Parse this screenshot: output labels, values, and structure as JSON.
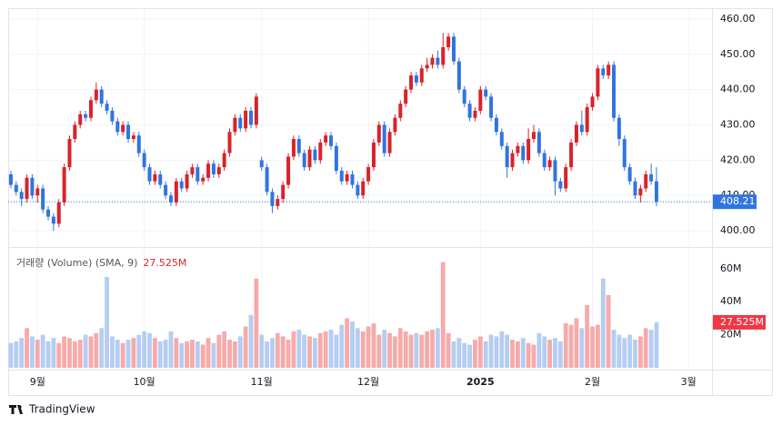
{
  "chart_data": {
    "type": "candlestick",
    "xlim": [
      -0.5,
      131.4
    ],
    "xticks": [
      {
        "value": 5,
        "label": "9월"
      },
      {
        "value": 25,
        "label": "10월"
      },
      {
        "value": 47,
        "label": "11월"
      },
      {
        "value": 67,
        "label": "12월"
      },
      {
        "value": 88,
        "label": "2025"
      },
      {
        "value": 109,
        "label": "2월"
      },
      {
        "value": 127,
        "label": "3월"
      }
    ],
    "ylim": [
      395.4,
      462.8
    ],
    "yticks": [
      {
        "value": 400,
        "label": "400.00"
      },
      {
        "value": 410,
        "label": "410.00"
      },
      {
        "value": 420,
        "label": "420.00"
      },
      {
        "value": 430,
        "label": "430.00"
      },
      {
        "value": 440,
        "label": "440.00"
      },
      {
        "value": 450,
        "label": "450.00"
      },
      {
        "value": 460,
        "label": "460.00"
      }
    ],
    "volume_ylim": [
      -1.1,
      73.1
    ],
    "volume_yticks": [
      {
        "value": 20,
        "label": "20M"
      },
      {
        "value": 40,
        "label": "40M"
      },
      {
        "value": 60,
        "label": "60M"
      }
    ],
    "volume_indicator": {
      "label": "거래량 (Volume) (SMA, 9)",
      "value_label": "27.525M"
    },
    "up_color": "#d8232a",
    "down_color": "#3174e0",
    "volume_up_color": "#f6aaa9",
    "volume_down_color": "#b4cdf3",
    "grid": true,
    "open": [
      416,
      413,
      411,
      409,
      415,
      410,
      412,
      406,
      404,
      402,
      408,
      418,
      426,
      430,
      433,
      432,
      437,
      440,
      436,
      434,
      431,
      428,
      430,
      426,
      427,
      422,
      418,
      414,
      416,
      413,
      410,
      408,
      414,
      412,
      416,
      418,
      414,
      415,
      419,
      416,
      418,
      422,
      428,
      432,
      429,
      434,
      430,
      420,
      418,
      411,
      407,
      409,
      413,
      421,
      426,
      422,
      418,
      423,
      420,
      425,
      427,
      424,
      417,
      414,
      416,
      413,
      410,
      414,
      418,
      425,
      430,
      422,
      428,
      432,
      436,
      440,
      444,
      442,
      446,
      447,
      449,
      447,
      452,
      455,
      448,
      440,
      436,
      432,
      434,
      440,
      438,
      432,
      428,
      424,
      418,
      422,
      424,
      420,
      426,
      428,
      422,
      418,
      420,
      414,
      412,
      418,
      425,
      430,
      428,
      435,
      438,
      446,
      444,
      447,
      432,
      426,
      418,
      414,
      410,
      412,
      416,
      414
    ],
    "high": [
      417,
      414,
      412,
      416,
      416,
      413,
      413,
      407,
      405,
      409,
      419,
      427,
      431,
      434,
      434,
      438,
      442,
      441,
      437,
      435,
      432,
      431,
      431,
      428,
      428,
      423,
      419,
      417,
      417,
      414,
      411,
      415,
      415,
      417,
      419,
      419,
      416,
      420,
      420,
      419,
      423,
      429,
      433,
      433,
      435,
      435,
      439,
      421,
      419,
      412,
      410,
      414,
      422,
      427,
      427,
      423,
      424,
      424,
      426,
      428,
      428,
      425,
      418,
      417,
      417,
      414,
      415,
      419,
      426,
      431,
      431,
      429,
      433,
      437,
      441,
      445,
      445,
      447,
      449,
      450,
      451,
      456,
      456,
      456,
      449,
      441,
      437,
      435,
      441,
      441,
      439,
      433,
      429,
      425,
      423,
      425,
      425,
      429,
      430,
      429,
      423,
      421,
      421,
      415,
      419,
      426,
      431,
      434,
      436,
      439,
      447,
      447,
      448,
      448,
      433,
      427,
      419,
      415,
      413,
      417,
      419,
      418
    ],
    "low": [
      412,
      410,
      407,
      408,
      409,
      408,
      405,
      403,
      400,
      401,
      407,
      417,
      425,
      429,
      431,
      431,
      436,
      435,
      433,
      430,
      427,
      427,
      425,
      425,
      421,
      417,
      413,
      413,
      412,
      409,
      407,
      407,
      411,
      411,
      415,
      413,
      413,
      414,
      415,
      415,
      417,
      421,
      427,
      428,
      428,
      429,
      429,
      417,
      410,
      405,
      406,
      408,
      412,
      420,
      421,
      417,
      417,
      419,
      419,
      424,
      423,
      416,
      413,
      413,
      412,
      409,
      409,
      413,
      417,
      424,
      421,
      421,
      427,
      431,
      435,
      439,
      441,
      441,
      445,
      446,
      446,
      446,
      451,
      447,
      439,
      435,
      431,
      431,
      433,
      437,
      431,
      427,
      423,
      415,
      417,
      421,
      419,
      419,
      425,
      421,
      417,
      417,
      410,
      411,
      411,
      417,
      424,
      427,
      427,
      434,
      437,
      443,
      443,
      431,
      424,
      417,
      413,
      409,
      408,
      411,
      413,
      407
    ],
    "close": [
      413,
      411,
      409,
      415,
      410,
      412,
      406,
      404,
      402,
      408,
      418,
      426,
      430,
      433,
      432,
      437,
      440,
      436,
      434,
      431,
      428,
      430,
      426,
      427,
      422,
      418,
      414,
      416,
      413,
      410,
      408,
      414,
      412,
      416,
      418,
      414,
      415,
      419,
      416,
      418,
      422,
      428,
      432,
      429,
      434,
      430,
      438,
      418,
      411,
      407,
      409,
      413,
      421,
      426,
      422,
      418,
      423,
      420,
      425,
      427,
      424,
      417,
      414,
      416,
      413,
      410,
      414,
      418,
      425,
      430,
      422,
      428,
      432,
      436,
      440,
      444,
      442,
      446,
      447,
      449,
      447,
      452,
      455,
      448,
      440,
      436,
      432,
      434,
      440,
      438,
      432,
      428,
      424,
      418,
      422,
      424,
      420,
      426,
      428,
      422,
      418,
      420,
      414,
      412,
      418,
      425,
      430,
      428,
      435,
      438,
      446,
      444,
      447,
      432,
      426,
      418,
      414,
      410,
      412,
      416,
      414,
      408.21
    ],
    "volume": [
      15,
      16,
      18,
      24,
      19,
      17,
      20,
      16,
      18,
      15,
      19,
      18,
      16,
      17,
      20,
      19,
      21,
      24,
      55,
      19,
      17,
      15,
      17,
      18,
      20,
      22,
      21,
      18,
      16,
      17,
      22,
      18,
      15,
      16,
      17,
      16,
      14,
      18,
      15,
      20,
      22,
      17,
      16,
      19,
      25,
      32,
      54,
      20,
      16,
      18,
      21,
      19,
      17,
      22,
      23,
      20,
      19,
      18,
      21,
      22,
      23,
      20,
      26,
      30,
      28,
      24,
      22,
      25,
      27,
      20,
      23,
      21,
      19,
      24,
      22,
      20,
      21,
      20,
      22,
      23,
      24,
      64,
      21,
      16,
      18,
      15,
      14,
      17,
      19,
      16,
      20,
      19,
      22,
      20,
      17,
      16,
      18,
      15,
      14,
      21,
      19,
      17,
      18,
      16,
      27,
      26,
      30,
      24,
      38,
      25,
      26,
      54,
      44,
      23,
      20,
      18,
      20,
      17,
      19,
      24,
      23,
      27.525
    ]
  },
  "brand": "TradingView"
}
